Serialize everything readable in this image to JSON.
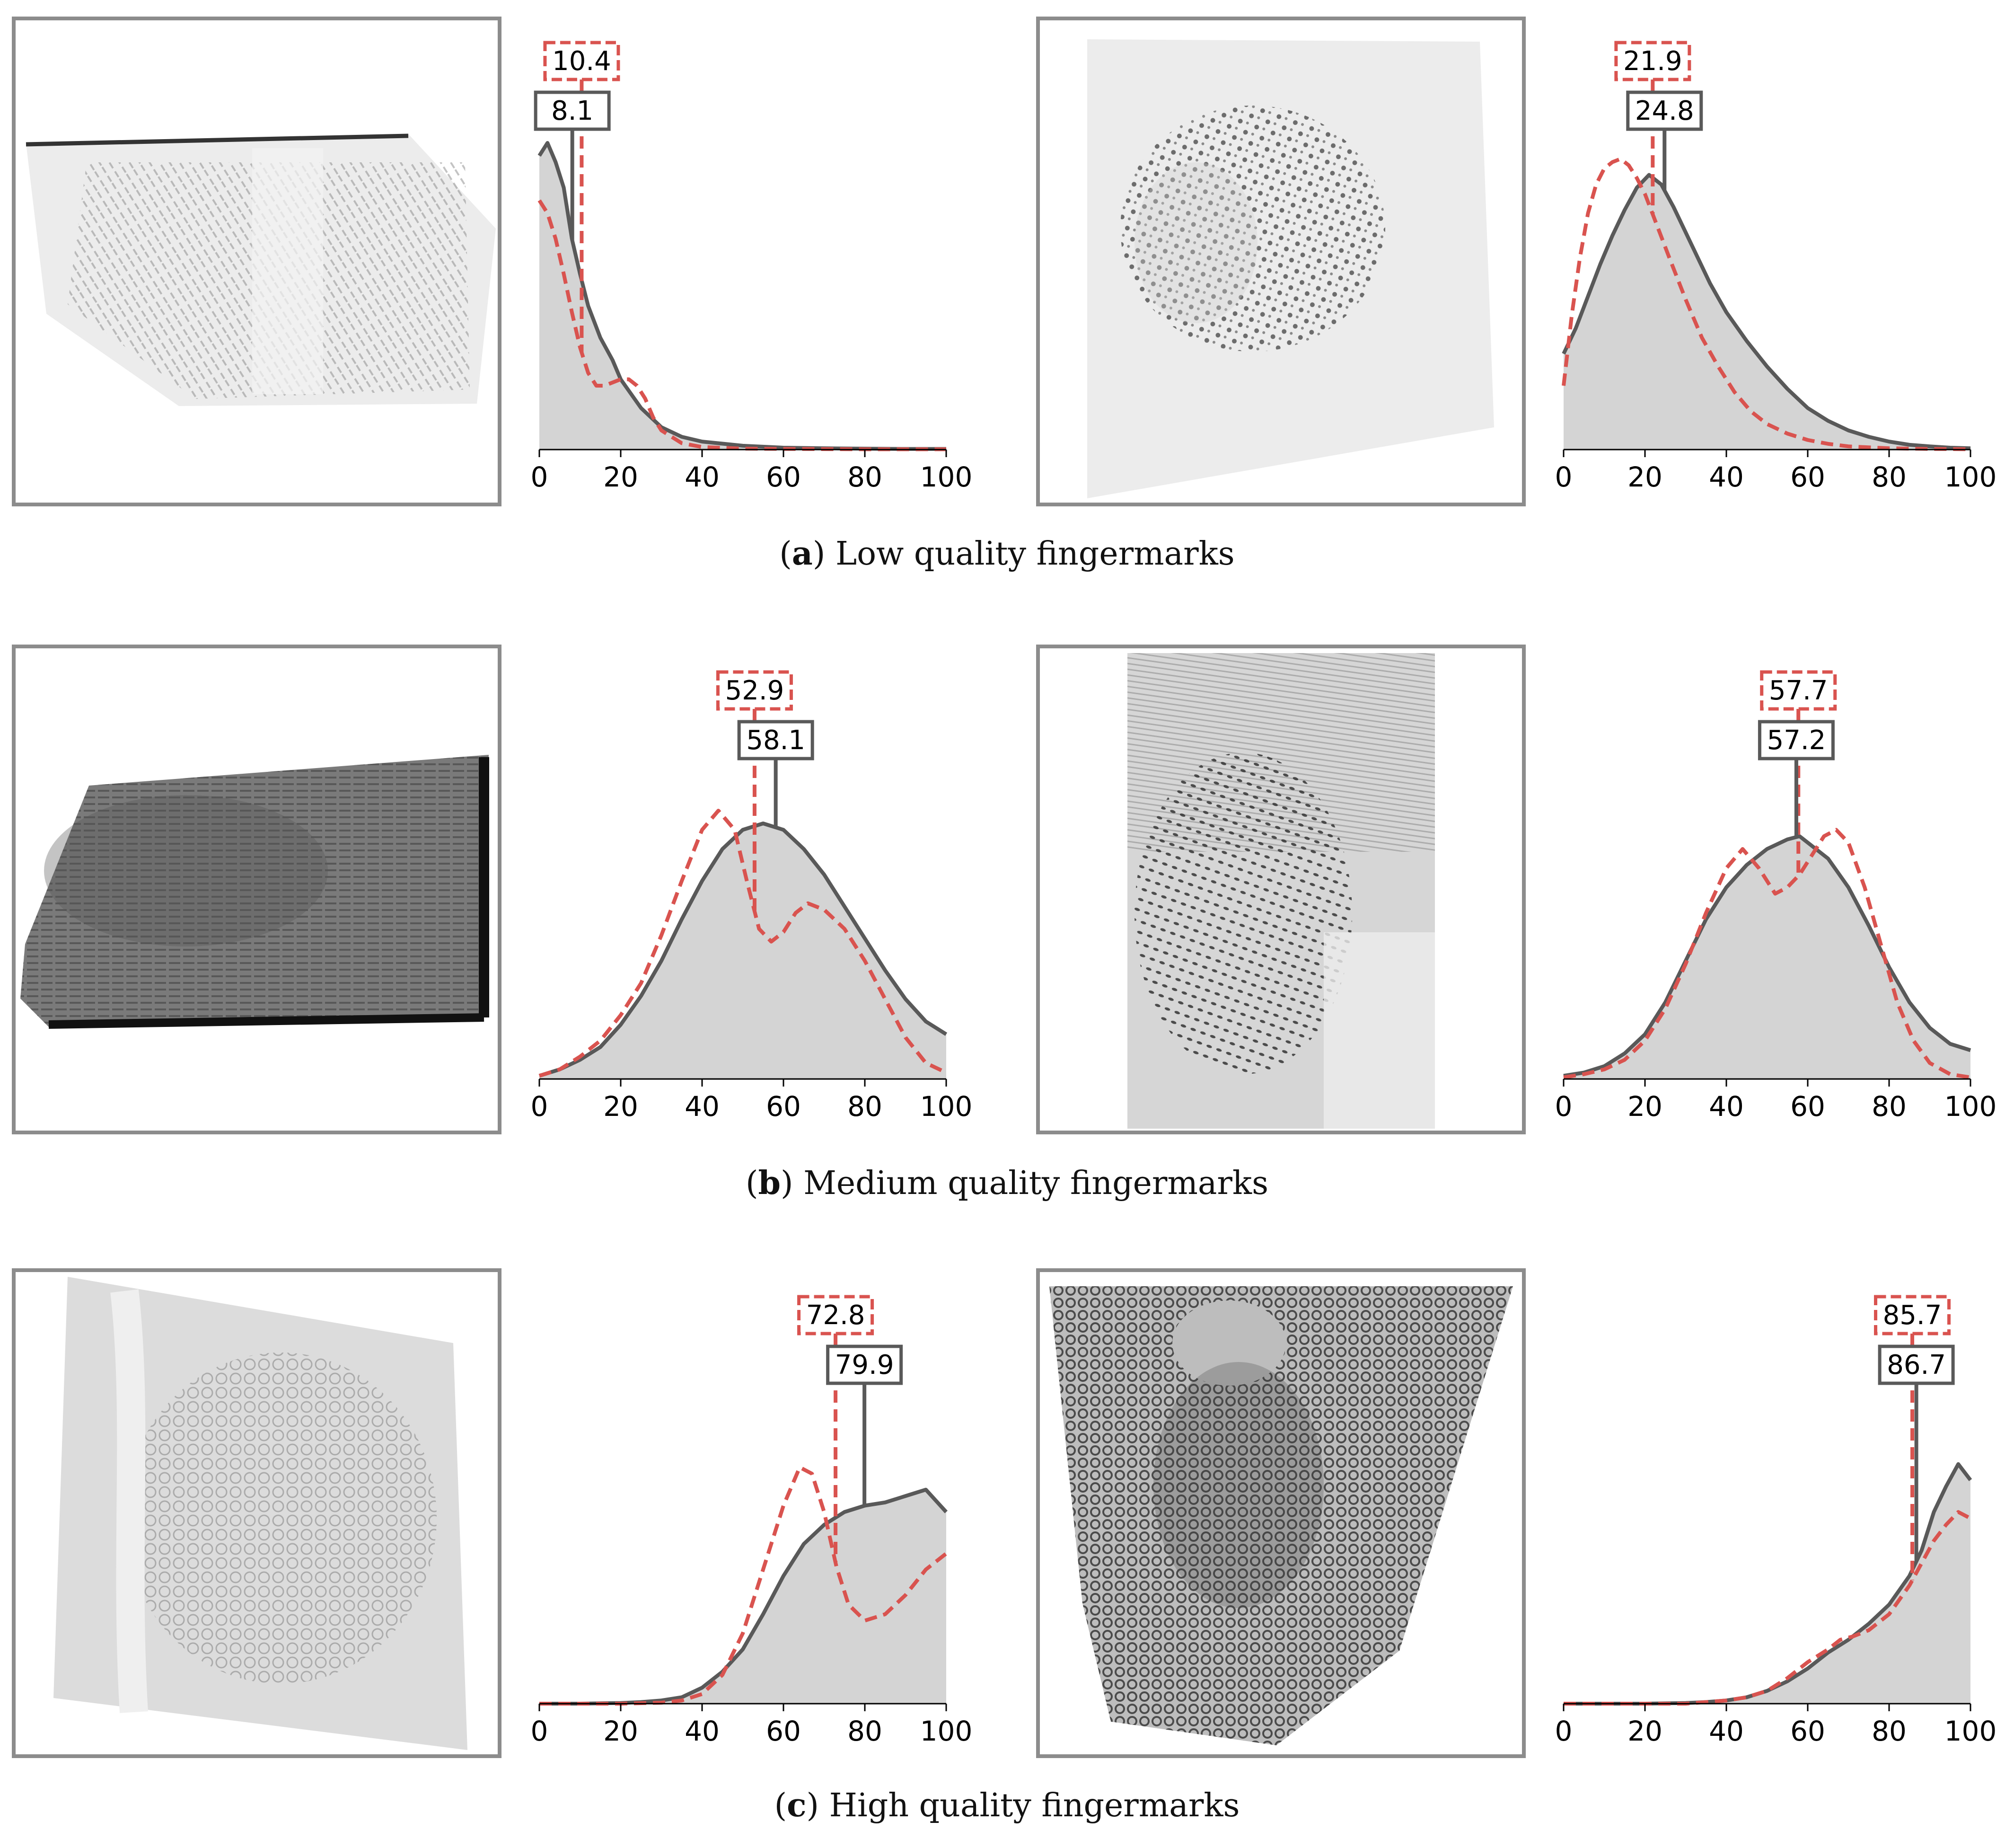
{
  "colors": {
    "measured": "#595959",
    "fit": "#d9534f",
    "fill": "#d4d4d4",
    "frame": "#8c8c8c",
    "axis": "#000000"
  },
  "rows": [
    {
      "caption": {
        "letter": "a",
        "text": "Low quality fingermarks"
      },
      "panels": [
        {
          "image": {
            "tone": "light",
            "shape": "trapezoid-wide",
            "style": "faint-horizontal"
          }
        },
        {
          "image": {
            "tone": "light",
            "shape": "square-tilted",
            "style": "dotted"
          }
        }
      ]
    },
    {
      "caption": {
        "letter": "b",
        "text": "Medium quality fingermarks"
      },
      "panels": [
        {
          "image": {
            "tone": "dark",
            "shape": "pentagon",
            "style": "dark-loop"
          }
        },
        {
          "image": {
            "tone": "medium",
            "shape": "tall-rect",
            "style": "dotted-loop"
          }
        }
      ]
    },
    {
      "caption": {
        "letter": "c",
        "text": "High quality fingermarks"
      },
      "panels": [
        {
          "image": {
            "tone": "light",
            "shape": "parallelogram",
            "style": "whorl-light"
          }
        },
        {
          "image": {
            "tone": "dark",
            "shape": "funnel",
            "style": "whorl-dark"
          }
        }
      ]
    }
  ],
  "chart_data": [
    {
      "type": "area",
      "id": "a-left",
      "xlim": [
        0,
        100
      ],
      "xticks": [
        "0",
        "20",
        "40",
        "60",
        "80",
        "100"
      ],
      "labels": {
        "fit": "10.4",
        "measured": "8.1"
      },
      "markers": {
        "fit": 10.4,
        "measured": 8.1
      },
      "series": [
        {
          "role": "measured",
          "x": [
            0,
            2,
            4,
            6,
            8,
            10,
            12,
            15,
            18,
            20,
            25,
            30,
            35,
            40,
            50,
            60,
            70,
            80,
            90,
            100
          ],
          "y": [
            0.92,
            0.96,
            0.9,
            0.82,
            0.66,
            0.55,
            0.45,
            0.35,
            0.28,
            0.22,
            0.13,
            0.07,
            0.04,
            0.025,
            0.012,
            0.006,
            0.004,
            0.003,
            0.002,
            0.002
          ]
        },
        {
          "role": "fit",
          "x": [
            0,
            2,
            4,
            6,
            8,
            10,
            12,
            14,
            16,
            18,
            20,
            22,
            24,
            26,
            28,
            30,
            35,
            40,
            50,
            60,
            80,
            100
          ],
          "y": [
            0.78,
            0.74,
            0.66,
            0.55,
            0.43,
            0.32,
            0.24,
            0.2,
            0.2,
            0.21,
            0.22,
            0.22,
            0.2,
            0.16,
            0.1,
            0.06,
            0.02,
            0.008,
            0.003,
            0.002,
            0.001,
            0.001
          ]
        }
      ]
    },
    {
      "type": "area",
      "id": "a-right",
      "xlim": [
        0,
        100
      ],
      "xticks": [
        "0",
        "20",
        "40",
        "60",
        "80",
        "100"
      ],
      "labels": {
        "fit": "21.9",
        "measured": "24.8"
      },
      "markers": {
        "fit": 21.9,
        "measured": 24.8
      },
      "series": [
        {
          "role": "measured",
          "x": [
            0,
            3,
            6,
            9,
            12,
            15,
            18,
            21,
            24,
            27,
            30,
            33,
            36,
            40,
            45,
            50,
            55,
            60,
            65,
            70,
            75,
            80,
            85,
            90,
            95,
            100
          ],
          "y": [
            0.3,
            0.38,
            0.48,
            0.58,
            0.67,
            0.75,
            0.82,
            0.86,
            0.83,
            0.76,
            0.68,
            0.6,
            0.52,
            0.43,
            0.34,
            0.26,
            0.19,
            0.13,
            0.09,
            0.06,
            0.04,
            0.025,
            0.015,
            0.01,
            0.006,
            0.004
          ]
        },
        {
          "role": "fit",
          "x": [
            0,
            2,
            4,
            6,
            8,
            10,
            12,
            14,
            16,
            18,
            20,
            23,
            26,
            30,
            34,
            38,
            42,
            46,
            50,
            55,
            60,
            65,
            70,
            80,
            90,
            100
          ],
          "y": [
            0.2,
            0.42,
            0.6,
            0.74,
            0.83,
            0.88,
            0.9,
            0.91,
            0.89,
            0.85,
            0.8,
            0.7,
            0.6,
            0.47,
            0.35,
            0.26,
            0.18,
            0.12,
            0.08,
            0.05,
            0.03,
            0.018,
            0.01,
            0.004,
            0.002,
            0.001
          ]
        }
      ]
    },
    {
      "type": "area",
      "id": "b-left",
      "xlim": [
        0,
        100
      ],
      "xticks": [
        "0",
        "20",
        "40",
        "60",
        "80",
        "100"
      ],
      "labels": {
        "fit": "52.9",
        "measured": "58.1"
      },
      "markers": {
        "fit": 52.9,
        "measured": 58.1
      },
      "series": [
        {
          "role": "measured",
          "x": [
            0,
            5,
            10,
            15,
            20,
            25,
            30,
            35,
            40,
            45,
            50,
            55,
            60,
            65,
            70,
            75,
            80,
            85,
            90,
            95,
            100
          ],
          "y": [
            0.01,
            0.03,
            0.06,
            0.1,
            0.17,
            0.26,
            0.37,
            0.5,
            0.62,
            0.72,
            0.78,
            0.8,
            0.78,
            0.72,
            0.64,
            0.54,
            0.44,
            0.34,
            0.25,
            0.18,
            0.14
          ]
        },
        {
          "role": "fit",
          "x": [
            0,
            5,
            10,
            15,
            20,
            25,
            30,
            35,
            40,
            44,
            48,
            51,
            54,
            57,
            60,
            63,
            66,
            70,
            75,
            80,
            85,
            90,
            95,
            100
          ],
          "y": [
            0.01,
            0.03,
            0.07,
            0.12,
            0.2,
            0.3,
            0.45,
            0.62,
            0.78,
            0.84,
            0.78,
            0.62,
            0.47,
            0.43,
            0.46,
            0.52,
            0.55,
            0.53,
            0.47,
            0.37,
            0.25,
            0.13,
            0.05,
            0.02
          ]
        }
      ]
    },
    {
      "type": "area",
      "id": "b-right",
      "xlim": [
        0,
        100
      ],
      "xticks": [
        "0",
        "20",
        "40",
        "60",
        "80",
        "100"
      ],
      "labels": {
        "fit": "57.7",
        "measured": "57.2"
      },
      "markers": {
        "fit": 57.7,
        "measured": 57.2
      },
      "series": [
        {
          "role": "measured",
          "x": [
            0,
            5,
            10,
            15,
            20,
            25,
            30,
            35,
            40,
            45,
            50,
            55,
            58,
            60,
            65,
            70,
            75,
            80,
            85,
            90,
            95,
            100
          ],
          "y": [
            0.01,
            0.02,
            0.04,
            0.08,
            0.14,
            0.24,
            0.37,
            0.5,
            0.6,
            0.67,
            0.72,
            0.75,
            0.76,
            0.74,
            0.69,
            0.6,
            0.48,
            0.35,
            0.24,
            0.16,
            0.11,
            0.09
          ]
        },
        {
          "role": "fit",
          "x": [
            0,
            5,
            10,
            15,
            20,
            25,
            30,
            35,
            40,
            44,
            48,
            52,
            55,
            58,
            61,
            64,
            67,
            70,
            74,
            78,
            82,
            86,
            90,
            95,
            100
          ],
          "y": [
            0.005,
            0.015,
            0.03,
            0.06,
            0.12,
            0.22,
            0.36,
            0.52,
            0.66,
            0.72,
            0.66,
            0.58,
            0.6,
            0.64,
            0.7,
            0.76,
            0.78,
            0.74,
            0.6,
            0.42,
            0.24,
            0.12,
            0.05,
            0.015,
            0.005
          ]
        }
      ]
    },
    {
      "type": "area",
      "id": "c-left",
      "xlim": [
        0,
        100
      ],
      "xticks": [
        "0",
        "20",
        "40",
        "60",
        "80",
        "100"
      ],
      "labels": {
        "fit": "72.8",
        "measured": "79.9"
      },
      "markers": {
        "fit": 72.8,
        "measured": 79.9
      },
      "series": [
        {
          "role": "measured",
          "x": [
            0,
            10,
            20,
            25,
            30,
            35,
            40,
            45,
            50,
            55,
            60,
            65,
            70,
            75,
            80,
            85,
            90,
            95,
            100
          ],
          "y": [
            0,
            0,
            0.002,
            0.005,
            0.01,
            0.02,
            0.05,
            0.1,
            0.17,
            0.28,
            0.4,
            0.5,
            0.56,
            0.6,
            0.62,
            0.63,
            0.65,
            0.67,
            0.6
          ]
        },
        {
          "role": "fit",
          "x": [
            0,
            20,
            30,
            35,
            40,
            45,
            50,
            55,
            60,
            64,
            67,
            70,
            73,
            76,
            80,
            85,
            90,
            95,
            100
          ],
          "y": [
            0,
            0,
            0.003,
            0.01,
            0.03,
            0.09,
            0.22,
            0.42,
            0.62,
            0.74,
            0.72,
            0.6,
            0.43,
            0.31,
            0.26,
            0.28,
            0.34,
            0.42,
            0.47
          ]
        }
      ]
    },
    {
      "type": "area",
      "id": "c-right",
      "xlim": [
        0,
        100
      ],
      "xticks": [
        "0",
        "20",
        "40",
        "60",
        "80",
        "100"
      ],
      "labels": {
        "fit": "85.7",
        "measured": "86.7"
      },
      "markers": {
        "fit": 85.7,
        "measured": 86.7
      },
      "series": [
        {
          "role": "measured",
          "x": [
            0,
            20,
            30,
            35,
            40,
            45,
            50,
            55,
            60,
            65,
            70,
            75,
            80,
            85,
            88,
            91,
            94,
            97,
            100
          ],
          "y": [
            0,
            0,
            0.002,
            0.005,
            0.01,
            0.02,
            0.04,
            0.07,
            0.11,
            0.16,
            0.2,
            0.25,
            0.31,
            0.4,
            0.48,
            0.6,
            0.68,
            0.75,
            0.7
          ]
        },
        {
          "role": "fit",
          "x": [
            0,
            30,
            40,
            45,
            50,
            55,
            60,
            65,
            68,
            71,
            75,
            80,
            85,
            88,
            91,
            94,
            97,
            100
          ],
          "y": [
            0,
            0,
            0.01,
            0.02,
            0.04,
            0.08,
            0.13,
            0.17,
            0.2,
            0.21,
            0.23,
            0.28,
            0.37,
            0.44,
            0.51,
            0.56,
            0.6,
            0.58
          ]
        }
      ]
    }
  ]
}
